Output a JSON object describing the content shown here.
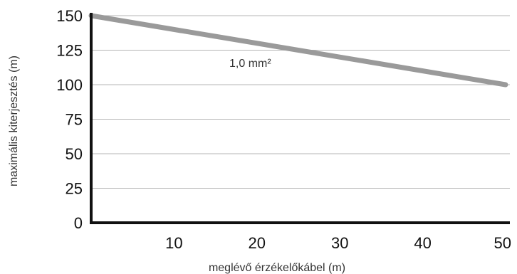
{
  "chart_data": {
    "type": "line",
    "title": "",
    "xlabel": "meglévő érzékelőkábel (m)",
    "ylabel": "maximális kiterjesztés (m)",
    "xlim": [
      0,
      50
    ],
    "ylim": [
      0,
      150
    ],
    "x_ticks": [
      10,
      20,
      30,
      40,
      50
    ],
    "y_ticks": [
      0,
      25,
      50,
      75,
      100,
      125,
      150
    ],
    "grid": "horizontal",
    "series": [
      {
        "name": "1,0 mm²",
        "color": "#9a9a9a",
        "x": [
          0,
          50
        ],
        "y": [
          150,
          100
        ]
      }
    ]
  }
}
